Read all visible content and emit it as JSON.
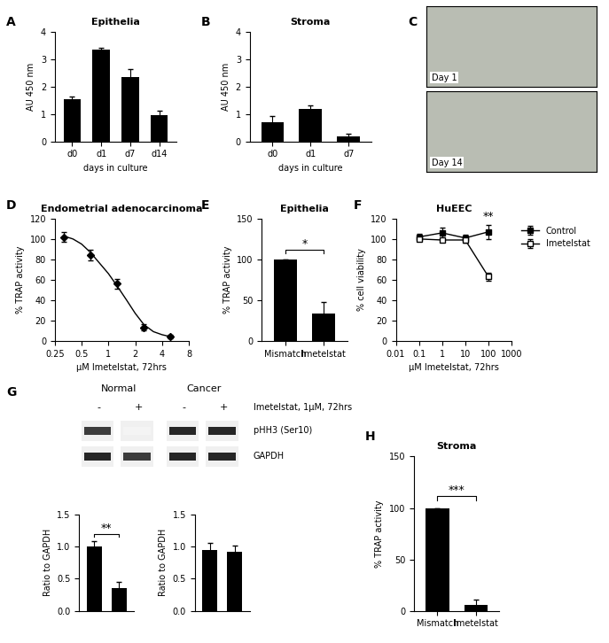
{
  "chart_data": [
    {
      "panel": "A",
      "type": "bar",
      "title": "Epithelia",
      "categories": [
        "d0",
        "d1",
        "d7",
        "d14"
      ],
      "values": [
        1.55,
        3.35,
        2.35,
        0.95
      ],
      "errors": [
        0.08,
        0.08,
        0.3,
        0.18
      ],
      "color": "#000000",
      "xlabel": "days in culture",
      "ylabel": "AU 450 nm",
      "ylim": [
        0,
        4
      ],
      "yticks": [
        0,
        1,
        2,
        3,
        4
      ]
    },
    {
      "panel": "B",
      "type": "bar",
      "title": "Stroma",
      "categories": [
        "d0",
        "d1",
        "d7"
      ],
      "values": [
        0.72,
        1.18,
        0.2
      ],
      "errors": [
        0.22,
        0.15,
        0.07
      ],
      "color": "#000000",
      "xlabel": "days in culture",
      "ylabel": "AU 450 nm",
      "ylim": [
        0,
        4
      ],
      "yticks": [
        0,
        1,
        2,
        3,
        4
      ]
    },
    {
      "panel": "C",
      "type": "image",
      "labels": [
        "Day 1",
        "Day 14"
      ],
      "color": "#b9bdb3"
    },
    {
      "panel": "D",
      "type": "line",
      "title": "Endometrial adenocarcinoma",
      "log": "x",
      "x": [
        0.3125,
        0.625,
        1.25,
        2.5,
        5
      ],
      "values": [
        102,
        84,
        56,
        13,
        4
      ],
      "errors": [
        5,
        5,
        5,
        3,
        2
      ],
      "marker": "D",
      "color": "#000000",
      "fit": {
        "x": [
          0.3125,
          0.4,
          0.5,
          0.625,
          0.8,
          1,
          1.25,
          1.6,
          2,
          2.5,
          3.2,
          4,
          5
        ],
        "values": [
          103,
          100,
          95,
          87,
          76,
          66,
          54,
          40,
          27,
          16,
          9,
          6,
          4
        ]
      },
      "xlabel": "μM Imetelstat, 72hrs",
      "ylabel": "% TRAP activity",
      "xlim": [
        0.25,
        8
      ],
      "xticks": [
        0.25,
        0.5,
        1,
        2,
        4,
        8
      ],
      "ylim": [
        0,
        120
      ],
      "yticks": [
        0,
        20,
        40,
        60,
        80,
        100,
        120
      ]
    },
    {
      "panel": "E",
      "type": "bar",
      "title": "Epithelia",
      "categories": [
        "Mismatch",
        "Imetelstat"
      ],
      "values": [
        100,
        33
      ],
      "errors": [
        0,
        15
      ],
      "color": "#000000",
      "ylabel": "% TRAP activity",
      "ylim": [
        0,
        150
      ],
      "yticks": [
        0,
        50,
        100,
        150
      ],
      "annotations": [
        {
          "text": "*",
          "between": [
            0,
            1
          ]
        }
      ]
    },
    {
      "panel": "F",
      "type": "line",
      "title": "HuEEC",
      "log": "x",
      "legend": "upper left",
      "x": [
        0.1,
        1,
        10,
        100
      ],
      "series": [
        {
          "name": "Control",
          "values": [
            102,
            106,
            101,
            107
          ],
          "errors": [
            3,
            5,
            3,
            7
          ],
          "color": "#000000",
          "marker": "s",
          "line_style": "solid"
        },
        {
          "name": "Imetelstat",
          "values": [
            100,
            99,
            99,
            63
          ],
          "errors": [
            2,
            2,
            3,
            4
          ],
          "color": "#ffffff",
          "marker": "s",
          "line_style": "solid"
        }
      ],
      "xlabel": "μM Imetelstat, 72hrs",
      "ylabel": "% cell viability",
      "xlim": [
        0.01,
        1000
      ],
      "xticks": [
        0.01,
        0.1,
        1,
        10,
        100,
        1000
      ],
      "ylim": [
        0,
        120
      ],
      "yticks": [
        0,
        20,
        40,
        60,
        80,
        100,
        120
      ],
      "annotations": [
        {
          "text": "**",
          "x": 100
        }
      ]
    },
    {
      "panel": "G",
      "type": "blot",
      "groups": [
        "Normal",
        "Cancer"
      ],
      "lanes": [
        "-",
        "+",
        "-",
        "+"
      ],
      "treatment": "Imetelstat, 1μM, 72hrs",
      "rows": [
        {
          "name": "pHH3 (Ser10)",
          "intensity": [
            0.9,
            0.05,
            1.0,
            1.0
          ]
        },
        {
          "name": "GAPDH",
          "intensity": [
            1.0,
            0.9,
            1.0,
            1.0
          ]
        }
      ],
      "charts": [
        {
          "type": "bar",
          "categories": [
            null,
            null
          ],
          "values": [
            1.0,
            0.35
          ],
          "errors": [
            0.08,
            0.1
          ],
          "color": "#000000",
          "ylabel": "Ratio to GAPDH",
          "ylim": [
            0,
            1.5
          ],
          "yticks": [
            {
              "value": 0,
              "label": "0.0"
            },
            {
              "value": 0.5,
              "label": "0.5"
            },
            {
              "value": 1.0,
              "label": "1.0"
            },
            {
              "value": 1.5,
              "label": "1.5"
            }
          ],
          "annotations": [
            {
              "text": "**",
              "between": [
                0,
                1
              ]
            }
          ]
        },
        {
          "type": "bar",
          "categories": [
            null,
            null
          ],
          "values": [
            0.95,
            0.92
          ],
          "errors": [
            0.1,
            0.1
          ],
          "color": "#000000",
          "ylabel": "Ratio to GAPDH",
          "ylim": [
            0,
            1.5
          ],
          "yticks": [
            {
              "value": 0,
              "label": "0.0"
            },
            {
              "value": 0.5,
              "label": "0.5"
            },
            {
              "value": 1.0,
              "label": "1.0"
            },
            {
              "value": 1.5,
              "label": "1.5"
            }
          ]
        }
      ]
    },
    {
      "panel": "H",
      "type": "bar",
      "title": "Stroma",
      "categories": [
        "Mismatch",
        "Imetelstat"
      ],
      "values": [
        100,
        6
      ],
      "errors": [
        0,
        5
      ],
      "color": "#000000",
      "ylabel": "% TRAP activity",
      "ylim": [
        0,
        150
      ],
      "yticks": [
        0,
        50,
        100,
        150
      ],
      "annotations": [
        {
          "text": "***",
          "between": [
            0,
            1
          ]
        }
      ]
    }
  ]
}
